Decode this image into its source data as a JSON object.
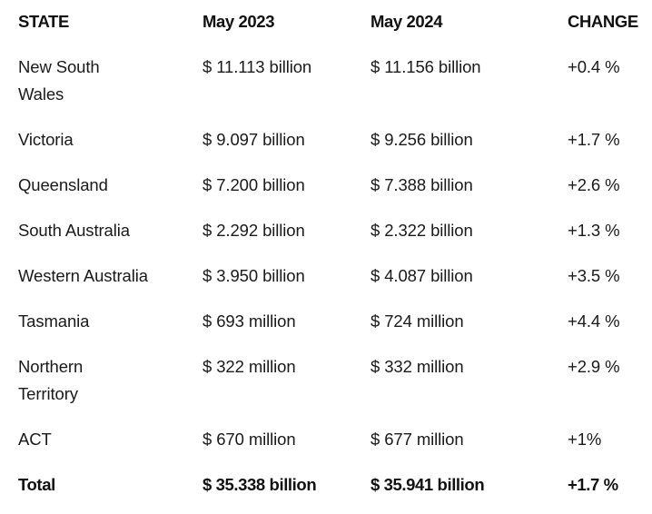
{
  "headers": {
    "state": "STATE",
    "may2023": "May 2023",
    "may2024": "May 2024",
    "change": "CHANGE"
  },
  "rows": [
    {
      "state": "New South Wales",
      "may2023": "$ 11.113 billion",
      "may2024": "$ 11.156 billion",
      "change": "+0.4 %"
    },
    {
      "state": "Victoria",
      "may2023": "$ 9.097 billion",
      "may2024": "$ 9.256 billion",
      "change": "+1.7 %"
    },
    {
      "state": "Queensland",
      "may2023": "$ 7.200 billion",
      "may2024": "$ 7.388 billion",
      "change": "+2.6 %"
    },
    {
      "state": "South Australia",
      "may2023": "$ 2.292 billion",
      "may2024": "$ 2.322 billion",
      "change": "+1.3 %"
    },
    {
      "state": "Western Australia",
      "may2023": "$ 3.950 billion",
      "may2024": "$ 4.087 billion",
      "change": "+3.5 %"
    },
    {
      "state": "Tasmania",
      "may2023": "$ 693 million",
      "may2024": "$ 724 million",
      "change": "+4.4 %"
    },
    {
      "state": "Northern Territory",
      "may2023": "$ 322 million",
      "may2024": "$ 332 million",
      "change": "+2.9 %"
    },
    {
      "state": "ACT",
      "may2023": "$ 670 million",
      "may2024": "$ 677 million",
      "change": "+1%"
    }
  ],
  "total": {
    "state": "Total",
    "may2023": "$ 35.338 billion",
    "may2024": "$ 35.941 billion",
    "change": "+1.7 %"
  }
}
